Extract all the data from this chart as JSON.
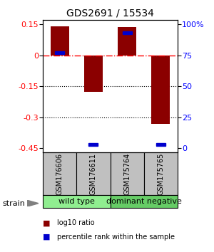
{
  "title": "GDS2691 / 15534",
  "samples": [
    "GSM176606",
    "GSM176611",
    "GSM175764",
    "GSM175765"
  ],
  "log10_ratios": [
    0.14,
    -0.175,
    0.135,
    -0.33
  ],
  "percentile_ranks": [
    77,
    3,
    93,
    3
  ],
  "groups": [
    {
      "label": "wild type",
      "samples": [
        0,
        1
      ],
      "color": "#90EE90"
    },
    {
      "label": "dominant negative",
      "samples": [
        2,
        3
      ],
      "color": "#66CC66"
    }
  ],
  "ylim": [
    -0.47,
    0.17
  ],
  "yticks_left": [
    0.15,
    0.0,
    -0.15,
    -0.3,
    -0.45
  ],
  "ytick_labels_left": [
    "0.15",
    "0",
    "-0.15",
    "-0.3",
    "-0.45"
  ],
  "yticks_right": [
    100,
    75,
    50,
    25,
    0
  ],
  "ytick_labels_right": [
    "100%",
    "75",
    "50",
    "25",
    "0"
  ],
  "bar_color": "#8B0000",
  "blue_color": "#0000CD",
  "bar_width": 0.55,
  "background_color": "#ffffff",
  "title_fontsize": 10,
  "tick_fontsize": 8,
  "sample_label_fontsize": 7,
  "group_label_fontsize": 8,
  "legend_fontsize": 7
}
